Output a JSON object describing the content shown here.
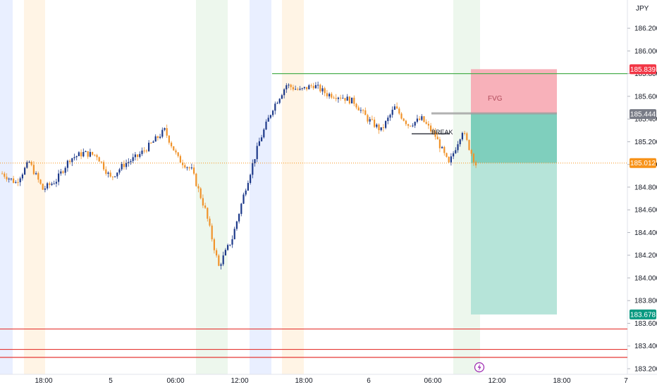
{
  "chart_data": {
    "type": "candlestick",
    "currency": "JPY",
    "ylim": [
      183.2,
      186.3
    ],
    "y_ticks": [
      "186.200",
      "186.000",
      "185.800",
      "185.600",
      "185.400",
      "185.200",
      "185.000",
      "184.800",
      "184.600",
      "184.400",
      "184.200",
      "184.000",
      "183.800",
      "183.600",
      "183.400",
      "183.200"
    ],
    "x_ticks": [
      "18:00",
      "5",
      "06:00",
      "12:00",
      "18:00",
      "6",
      "06:00",
      "12:00",
      "18:00",
      "7"
    ],
    "price_tags": [
      {
        "label": "185.839",
        "value": 185.839,
        "color": "#f23645"
      },
      {
        "label": "185.444",
        "value": 185.444,
        "color": "#787b86"
      },
      {
        "label": "185.012",
        "value": 185.012,
        "color": "#f7931a"
      },
      {
        "label": "183.678",
        "value": 183.678,
        "color": "#089981"
      }
    ],
    "annotations": {
      "fvg_label": "FVG",
      "break_label": "BREAK",
      "target_level": 185.8,
      "break_level": 185.27,
      "fvg_level": 185.45,
      "current_price": 185.012,
      "stop_level": 185.839,
      "take_profit_level": 183.678,
      "support_levels": [
        183.55,
        183.37,
        183.3
      ]
    },
    "sessions": [
      {
        "color": "#2962ff",
        "alpha": 0.1
      },
      {
        "color": "#ff9800",
        "alpha": 0.1
      },
      {
        "color": "#4caf50",
        "alpha": 0.1
      }
    ],
    "price_path": [
      184.92,
      184.84,
      185.02,
      184.78,
      184.86,
      185.05,
      185.1,
      185.08,
      184.88,
      185.0,
      185.07,
      185.18,
      185.3,
      185.05,
      184.95,
      184.6,
      184.1,
      184.35,
      184.8,
      185.2,
      185.5,
      185.7,
      185.65,
      185.7,
      185.62,
      185.6,
      185.55,
      185.4,
      185.3,
      185.5,
      185.35,
      185.4,
      185.25,
      185.0,
      185.3,
      185.0
    ]
  },
  "icons": {
    "flash": "flash-icon"
  }
}
